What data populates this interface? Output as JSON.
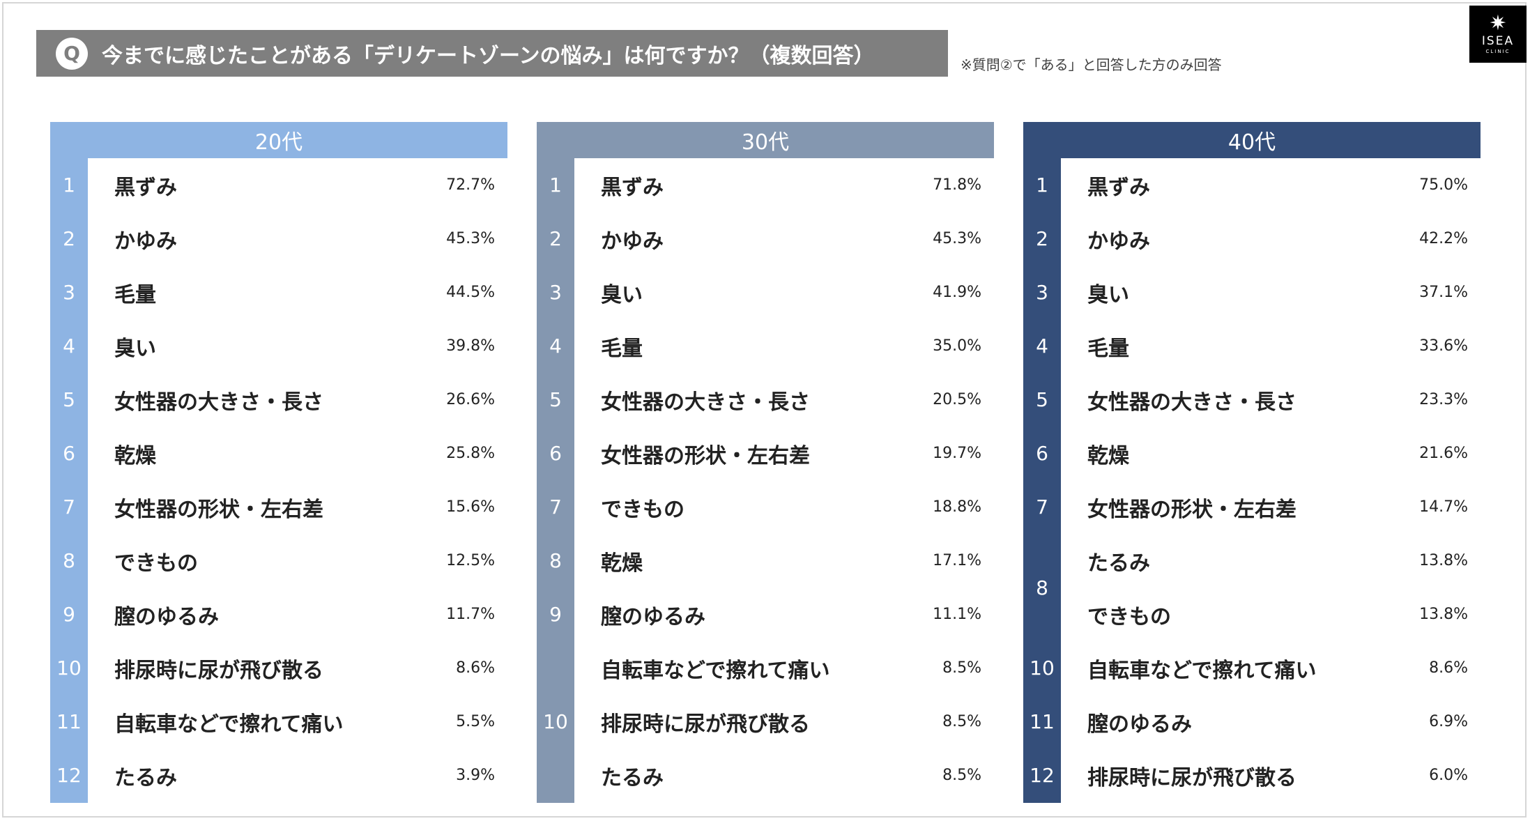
{
  "header": {
    "badge": "Q",
    "question": "今までに感じたことがある「デリケートゾーンの悩み」は何ですか？（複数回答）",
    "note": "※質問②で「ある」と回答した方のみ回答"
  },
  "logo": {
    "mark": "✷",
    "name": "ISEA",
    "sub": "CLINIC"
  },
  "chart_data": [
    {
      "type": "table",
      "title": "20代",
      "color": "#8eb4e3",
      "rows": [
        {
          "rank": "1",
          "label": "黒ずみ",
          "value": "72.7%"
        },
        {
          "rank": "2",
          "label": "かゆみ",
          "value": "45.3%"
        },
        {
          "rank": "3",
          "label": "毛量",
          "value": "44.5%"
        },
        {
          "rank": "4",
          "label": "臭い",
          "value": "39.8%"
        },
        {
          "rank": "5",
          "label": "女性器の大きさ・長さ",
          "value": "26.6%"
        },
        {
          "rank": "6",
          "label": "乾燥",
          "value": "25.8%"
        },
        {
          "rank": "7",
          "label": "女性器の形状・左右差",
          "value": "15.6%"
        },
        {
          "rank": "8",
          "label": "できもの",
          "value": "12.5%"
        },
        {
          "rank": "9",
          "label": "膣のゆるみ",
          "value": "11.7%"
        },
        {
          "rank": "10",
          "label": "排尿時に尿が飛び散る",
          "value": "8.6%"
        },
        {
          "rank": "11",
          "label": "自転車などで擦れて痛い",
          "value": "5.5%"
        },
        {
          "rank": "12",
          "label": "たるみ",
          "value": "3.9%"
        }
      ]
    },
    {
      "type": "table",
      "title": "30代",
      "color": "#8497b0",
      "rows": [
        {
          "rank": "1",
          "label": "黒ずみ",
          "value": "71.8%"
        },
        {
          "rank": "2",
          "label": "かゆみ",
          "value": "45.3%"
        },
        {
          "rank": "3",
          "label": "臭い",
          "value": "41.9%"
        },
        {
          "rank": "4",
          "label": "毛量",
          "value": "35.0%"
        },
        {
          "rank": "5",
          "label": "女性器の大きさ・長さ",
          "value": "20.5%"
        },
        {
          "rank": "6",
          "label": "女性器の形状・左右差",
          "value": "19.7%"
        },
        {
          "rank": "7",
          "label": "できもの",
          "value": "18.8%"
        },
        {
          "rank": "8",
          "label": "乾燥",
          "value": "17.1%"
        },
        {
          "rank": "9",
          "label": "膣のゆるみ",
          "value": "11.1%"
        },
        {
          "rank": "",
          "label": "自転車などで擦れて痛い",
          "value": "8.5%"
        },
        {
          "rank": "10",
          "label": "排尿時に尿が飛び散る",
          "value": "8.5%"
        },
        {
          "rank": "",
          "label": "たるみ",
          "value": "8.5%"
        }
      ]
    },
    {
      "type": "table",
      "title": "40代",
      "color": "#344e7a",
      "rows": [
        {
          "rank": "1",
          "label": "黒ずみ",
          "value": "75.0%"
        },
        {
          "rank": "2",
          "label": "かゆみ",
          "value": "42.2%"
        },
        {
          "rank": "3",
          "label": "臭い",
          "value": "37.1%"
        },
        {
          "rank": "4",
          "label": "毛量",
          "value": "33.6%"
        },
        {
          "rank": "5",
          "label": "女性器の大きさ・長さ",
          "value": "23.3%"
        },
        {
          "rank": "6",
          "label": "乾燥",
          "value": "21.6%"
        },
        {
          "rank": "7",
          "label": "女性器の形状・左右差",
          "value": "14.7%"
        },
        {
          "rank": "",
          "label": "たるみ",
          "value": "13.8%"
        },
        {
          "rank": "",
          "label": "できもの",
          "value": "13.8%"
        },
        {
          "rank": "10",
          "label": "自転車などで擦れて痛い",
          "value": "8.6%"
        },
        {
          "rank": "11",
          "label": "膣のゆるみ",
          "value": "6.9%"
        },
        {
          "rank": "12",
          "label": "排尿時に尿が飛び散る",
          "value": "6.0%"
        }
      ],
      "merged_rank": {
        "rank": "8",
        "rows": [
          7,
          8
        ]
      }
    }
  ]
}
